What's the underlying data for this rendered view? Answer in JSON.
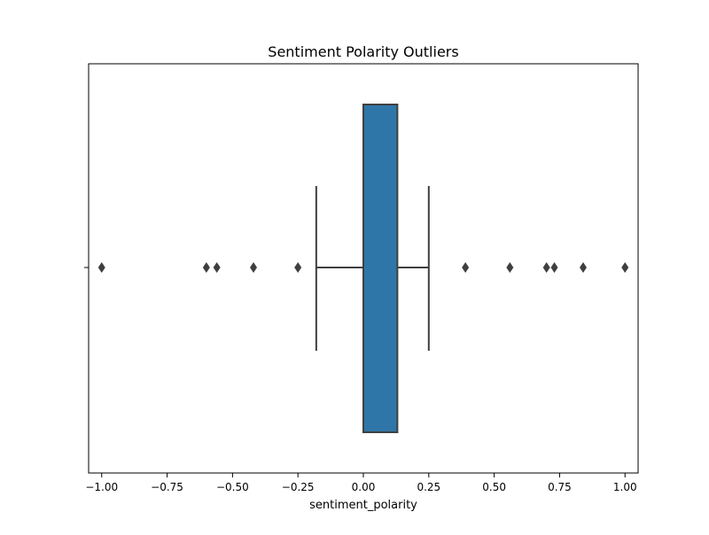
{
  "chart_data": {
    "type": "box",
    "title": "Sentiment Polarity Outliers",
    "xlabel": "sentiment_polarity",
    "ylabel": "",
    "xlim": [
      -1.05,
      1.05
    ],
    "xticks": [
      -1.0,
      -0.75,
      -0.5,
      -0.25,
      0.0,
      0.25,
      0.5,
      0.75,
      1.0
    ],
    "xtick_labels": [
      "−1.00",
      "−0.75",
      "−0.50",
      "−0.25",
      "0.00",
      "0.25",
      "0.50",
      "0.75",
      "1.00"
    ],
    "grid": false,
    "box": {
      "whisker_low": -0.18,
      "q1": 0.0,
      "median": 0.0,
      "q3": 0.13,
      "whisker_high": 0.25
    },
    "outliers": [
      -1.0,
      -0.6,
      -0.56,
      -0.42,
      -0.25,
      0.39,
      0.56,
      0.7,
      0.73,
      0.84,
      1.0
    ],
    "colors": {
      "box_fill": "#2f76a8",
      "line": "#3f3f3f",
      "outlier": "#3f3f3f"
    }
  }
}
